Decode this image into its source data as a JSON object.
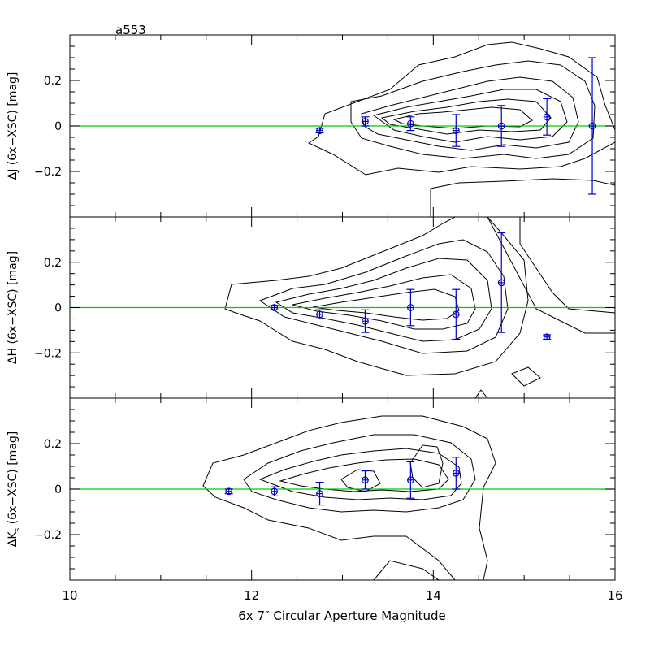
{
  "chart_data": {
    "type": "scatter",
    "title": "a553",
    "xlabel": "6x 7″ Circular Aperture Magnitude",
    "xlim": [
      10,
      16
    ],
    "x_ticks": [
      "10",
      "12",
      "14",
      "16"
    ],
    "colors": {
      "points": "#0000cc",
      "reference_line": "#00cc00",
      "contours": "#000000"
    },
    "reference_line_y": 0,
    "panels": [
      {
        "ylabel": "ΔJ (6x−XSC) [mag]",
        "ylim": [
          -0.4,
          0.4
        ],
        "y_ticks": [
          "0.2",
          "0",
          "−0.2"
        ],
        "points": [
          {
            "x": 12.75,
            "y": -0.02,
            "err": 0.01
          },
          {
            "x": 13.25,
            "y": 0.02,
            "err": 0.02
          },
          {
            "x": 13.75,
            "y": 0.01,
            "err": 0.03
          },
          {
            "x": 14.25,
            "y": -0.02,
            "err": 0.07
          },
          {
            "x": 14.75,
            "y": 0.0,
            "err": 0.09
          },
          {
            "x": 15.25,
            "y": 0.04,
            "err": 0.08
          },
          {
            "x": 15.75,
            "y": 0.0,
            "err": 0.3
          }
        ]
      },
      {
        "ylabel": "ΔH (6x−XSC) [mag]",
        "ylim": [
          -0.4,
          0.4
        ],
        "y_ticks": [
          "0.2",
          "0",
          "−0.2"
        ],
        "points": [
          {
            "x": 12.25,
            "y": 0.0,
            "err": 0.01
          },
          {
            "x": 12.75,
            "y": -0.03,
            "err": 0.02
          },
          {
            "x": 13.25,
            "y": -0.06,
            "err": 0.05
          },
          {
            "x": 13.75,
            "y": 0.0,
            "err": 0.08
          },
          {
            "x": 14.25,
            "y": -0.03,
            "err": 0.11
          },
          {
            "x": 14.75,
            "y": 0.11,
            "err": 0.22
          },
          {
            "x": 15.25,
            "y": -0.13,
            "err": 0.01
          }
        ]
      },
      {
        "ylabel": "ΔK (6x−XSC) [mag]",
        "ylabel_subscript": "s",
        "ylim": [
          -0.4,
          0.4
        ],
        "y_ticks": [
          "0.2",
          "0",
          "−0.2"
        ],
        "points": [
          {
            "x": 11.75,
            "y": -0.01,
            "err": 0.01
          },
          {
            "x": 12.25,
            "y": -0.01,
            "err": 0.02
          },
          {
            "x": 12.75,
            "y": -0.02,
            "err": 0.05
          },
          {
            "x": 13.25,
            "y": 0.04,
            "err": 0.04
          },
          {
            "x": 13.75,
            "y": 0.04,
            "err": 0.08
          },
          {
            "x": 14.25,
            "y": 0.07,
            "err": 0.07
          }
        ]
      }
    ]
  }
}
